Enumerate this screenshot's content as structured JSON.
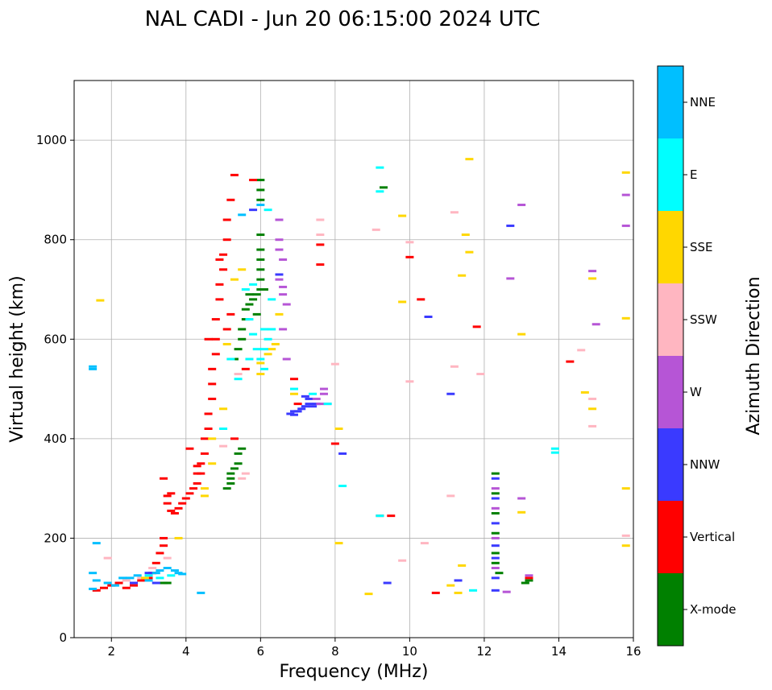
{
  "chart_data": {
    "type": "scatter",
    "title": "NAL CADI - Jun 20 06:15:00 2024 UTC",
    "xlabel": "Frequency (MHz)",
    "ylabel": "Virtual height (km)",
    "xlim": [
      1,
      16
    ],
    "ylim": [
      0,
      1120
    ],
    "grid": true,
    "xticks": [
      2,
      4,
      6,
      8,
      10,
      12,
      14,
      16
    ],
    "yticks": [
      0,
      200,
      400,
      600,
      800,
      1000
    ],
    "colorbar": {
      "label": "Azimuth Direction",
      "categories": [
        {
          "name": "X-mode",
          "color": "#008000"
        },
        {
          "name": "Vertical",
          "color": "#ff0000"
        },
        {
          "name": "NNW",
          "color": "#3a3aff"
        },
        {
          "name": "W",
          "color": "#b655d6"
        },
        {
          "name": "SSW",
          "color": "#ffb6c1"
        },
        {
          "name": "SSE",
          "color": "#ffd700"
        },
        {
          "name": "E",
          "color": "#00ffff"
        },
        {
          "name": "NNE",
          "color": "#00bfff"
        }
      ]
    },
    "series": [
      {
        "name": "X-mode",
        "points": [
          [
            6.0,
            920
          ],
          [
            6.0,
            900
          ],
          [
            6.0,
            880
          ],
          [
            6.0,
            810
          ],
          [
            6.0,
            780
          ],
          [
            6.0,
            760
          ],
          [
            6.0,
            740
          ],
          [
            6.0,
            720
          ],
          [
            6.0,
            700
          ],
          [
            5.9,
            690
          ],
          [
            5.8,
            680
          ],
          [
            5.7,
            670
          ],
          [
            5.6,
            660
          ],
          [
            5.6,
            640
          ],
          [
            5.5,
            620
          ],
          [
            5.5,
            600
          ],
          [
            5.4,
            580
          ],
          [
            5.3,
            560
          ],
          [
            5.5,
            380
          ],
          [
            5.4,
            370
          ],
          [
            5.4,
            350
          ],
          [
            5.3,
            340
          ],
          [
            5.2,
            330
          ],
          [
            5.2,
            320
          ],
          [
            5.2,
            310
          ],
          [
            5.1,
            300
          ],
          [
            9.3,
            905
          ],
          [
            3.4,
            110
          ],
          [
            3.5,
            110
          ],
          [
            12.3,
            330
          ],
          [
            12.3,
            290
          ],
          [
            12.3,
            250
          ],
          [
            12.3,
            210
          ],
          [
            12.3,
            170
          ],
          [
            12.3,
            150
          ],
          [
            12.4,
            130
          ],
          [
            13.1,
            110
          ],
          [
            13.2,
            115
          ],
          [
            5.9,
            650
          ],
          [
            6.1,
            700
          ],
          [
            5.7,
            690
          ]
        ]
      },
      {
        "name": "Vertical",
        "points": [
          [
            1.6,
            95
          ],
          [
            1.8,
            100
          ],
          [
            2.0,
            105
          ],
          [
            2.2,
            110
          ],
          [
            2.4,
            100
          ],
          [
            2.6,
            105
          ],
          [
            2.8,
            115
          ],
          [
            3.0,
            120
          ],
          [
            3.1,
            130
          ],
          [
            3.2,
            150
          ],
          [
            3.3,
            170
          ],
          [
            3.4,
            185
          ],
          [
            3.4,
            200
          ],
          [
            3.5,
            270
          ],
          [
            3.5,
            285
          ],
          [
            3.6,
            255
          ],
          [
            3.7,
            250
          ],
          [
            3.8,
            260
          ],
          [
            3.9,
            270
          ],
          [
            4.0,
            280
          ],
          [
            4.1,
            290
          ],
          [
            4.2,
            300
          ],
          [
            4.3,
            310
          ],
          [
            4.4,
            330
          ],
          [
            4.4,
            350
          ],
          [
            4.5,
            370
          ],
          [
            4.5,
            400
          ],
          [
            4.6,
            420
          ],
          [
            4.6,
            450
          ],
          [
            4.7,
            480
          ],
          [
            4.7,
            510
          ],
          [
            4.7,
            540
          ],
          [
            4.8,
            570
          ],
          [
            4.8,
            600
          ],
          [
            4.8,
            640
          ],
          [
            4.9,
            680
          ],
          [
            4.9,
            710
          ],
          [
            5.0,
            740
          ],
          [
            5.0,
            770
          ],
          [
            5.1,
            800
          ],
          [
            5.1,
            840
          ],
          [
            5.2,
            880
          ],
          [
            5.3,
            930
          ],
          [
            5.8,
            920
          ],
          [
            6.9,
            520
          ],
          [
            7.0,
            470
          ],
          [
            7.6,
            750
          ],
          [
            7.6,
            790
          ],
          [
            8.0,
            390
          ],
          [
            9.2,
            245
          ],
          [
            9.5,
            245
          ],
          [
            10.0,
            765
          ],
          [
            10.3,
            680
          ],
          [
            10.7,
            90
          ],
          [
            11.8,
            625
          ],
          [
            14.3,
            555
          ],
          [
            13.2,
            120
          ],
          [
            4.1,
            380
          ],
          [
            4.3,
            345
          ],
          [
            5.3,
            400
          ],
          [
            5.6,
            540
          ],
          [
            5.1,
            620
          ],
          [
            4.9,
            760
          ],
          [
            4.6,
            600
          ],
          [
            5.2,
            650
          ],
          [
            3.4,
            320
          ],
          [
            3.6,
            290
          ],
          [
            4.3,
            330
          ]
        ]
      },
      {
        "name": "NNW",
        "points": [
          [
            6.8,
            450
          ],
          [
            6.9,
            455
          ],
          [
            7.0,
            455
          ],
          [
            7.1,
            460
          ],
          [
            7.2,
            465
          ],
          [
            7.3,
            470
          ],
          [
            7.4,
            465
          ],
          [
            7.5,
            470
          ],
          [
            7.3,
            480
          ],
          [
            7.2,
            485
          ],
          [
            6.9,
            448
          ],
          [
            8.2,
            370
          ],
          [
            9.4,
            110
          ],
          [
            10.5,
            645
          ],
          [
            11.1,
            490
          ],
          [
            11.3,
            115
          ],
          [
            12.3,
            320
          ],
          [
            12.3,
            280
          ],
          [
            12.3,
            230
          ],
          [
            12.3,
            185
          ],
          [
            12.3,
            160
          ],
          [
            12.3,
            120
          ],
          [
            12.3,
            95
          ],
          [
            12.7,
            828
          ],
          [
            6.5,
            730
          ],
          [
            5.8,
            860
          ],
          [
            3.0,
            130
          ],
          [
            3.2,
            110
          ],
          [
            2.6,
            110
          ]
        ]
      },
      {
        "name": "W",
        "points": [
          [
            6.5,
            840
          ],
          [
            6.5,
            800
          ],
          [
            6.6,
            760
          ],
          [
            6.5,
            720
          ],
          [
            6.6,
            690
          ],
          [
            6.7,
            670
          ],
          [
            6.6,
            620
          ],
          [
            6.7,
            560
          ],
          [
            7.5,
            480
          ],
          [
            7.7,
            490
          ],
          [
            7.8,
            470
          ],
          [
            7.7,
            500
          ],
          [
            7.6,
            470
          ],
          [
            13.0,
            870
          ],
          [
            12.7,
            722
          ],
          [
            14.9,
            737
          ],
          [
            15.0,
            630
          ],
          [
            15.8,
            890
          ],
          [
            15.8,
            828
          ],
          [
            12.6,
            92
          ],
          [
            13.2,
            125
          ],
          [
            12.3,
            300
          ],
          [
            12.3,
            260
          ],
          [
            12.3,
            200
          ],
          [
            12.3,
            140
          ],
          [
            13.0,
            280
          ],
          [
            6.5,
            780
          ],
          [
            6.6,
            705
          ]
        ]
      },
      {
        "name": "SSW",
        "points": [
          [
            7.6,
            840
          ],
          [
            7.6,
            810
          ],
          [
            8.0,
            550
          ],
          [
            9.1,
            820
          ],
          [
            10.0,
            795
          ],
          [
            10.0,
            515
          ],
          [
            9.8,
            155
          ],
          [
            10.4,
            190
          ],
          [
            11.2,
            855
          ],
          [
            11.2,
            545
          ],
          [
            11.1,
            285
          ],
          [
            11.9,
            530
          ],
          [
            14.6,
            578
          ],
          [
            14.9,
            425
          ],
          [
            15.8,
            205
          ],
          [
            5.6,
            330
          ],
          [
            5.5,
            320
          ],
          [
            5.4,
            530
          ],
          [
            2.4,
            115
          ],
          [
            2.8,
            120
          ],
          [
            3.1,
            140
          ],
          [
            3.5,
            160
          ],
          [
            1.9,
            160
          ],
          [
            14.9,
            480
          ],
          [
            5.0,
            385
          ]
        ]
      },
      {
        "name": "SSE",
        "points": [
          [
            1.7,
            678
          ],
          [
            4.7,
            400
          ],
          [
            4.7,
            350
          ],
          [
            4.5,
            285
          ],
          [
            4.5,
            300
          ],
          [
            5.0,
            460
          ],
          [
            5.3,
            720
          ],
          [
            5.5,
            740
          ],
          [
            6.0,
            530
          ],
          [
            6.2,
            570
          ],
          [
            6.3,
            580
          ],
          [
            6.5,
            650
          ],
          [
            6.4,
            590
          ],
          [
            6.9,
            490
          ],
          [
            8.1,
            420
          ],
          [
            8.1,
            190
          ],
          [
            8.9,
            88
          ],
          [
            9.8,
            675
          ],
          [
            9.8,
            848
          ],
          [
            11.1,
            105
          ],
          [
            11.3,
            90
          ],
          [
            11.4,
            145
          ],
          [
            11.4,
            728
          ],
          [
            11.5,
            810
          ],
          [
            11.6,
            775
          ],
          [
            11.6,
            962
          ],
          [
            13.0,
            610
          ],
          [
            13.0,
            252
          ],
          [
            14.7,
            493
          ],
          [
            14.9,
            460
          ],
          [
            14.9,
            722
          ],
          [
            15.8,
            935
          ],
          [
            15.8,
            642
          ],
          [
            15.8,
            300
          ],
          [
            15.8,
            185
          ],
          [
            2.9,
            120
          ],
          [
            3.8,
            200
          ],
          [
            6.0,
            552
          ],
          [
            5.1,
            590
          ]
        ]
      },
      {
        "name": "E",
        "points": [
          [
            5.6,
            700
          ],
          [
            5.7,
            640
          ],
          [
            5.8,
            610
          ],
          [
            5.9,
            580
          ],
          [
            6.0,
            560
          ],
          [
            6.1,
            540
          ],
          [
            6.2,
            600
          ],
          [
            6.3,
            620
          ],
          [
            6.1,
            580
          ],
          [
            5.7,
            560
          ],
          [
            5.4,
            520
          ],
          [
            5.2,
            560
          ],
          [
            6.1,
            620
          ],
          [
            6.2,
            860
          ],
          [
            6.3,
            680
          ],
          [
            6.9,
            500
          ],
          [
            7.4,
            490
          ],
          [
            7.8,
            470
          ],
          [
            8.2,
            305
          ],
          [
            9.2,
            945
          ],
          [
            9.2,
            897
          ],
          [
            9.2,
            245
          ],
          [
            11.7,
            95
          ],
          [
            13.9,
            380
          ],
          [
            13.9,
            372
          ],
          [
            5.0,
            420
          ],
          [
            5.8,
            710
          ],
          [
            3.3,
            120
          ],
          [
            3.6,
            125
          ],
          [
            3.0,
            125
          ]
        ]
      },
      {
        "name": "NNE",
        "points": [
          [
            1.5,
            545
          ],
          [
            1.5,
            540
          ],
          [
            1.5,
            130
          ],
          [
            1.6,
            115
          ],
          [
            1.9,
            110
          ],
          [
            2.1,
            105
          ],
          [
            2.5,
            120
          ],
          [
            2.7,
            125
          ],
          [
            3.0,
            115
          ],
          [
            3.2,
            130
          ],
          [
            3.3,
            135
          ],
          [
            3.5,
            140
          ],
          [
            3.7,
            135
          ],
          [
            3.8,
            130
          ],
          [
            3.9,
            128
          ],
          [
            4.4,
            90
          ],
          [
            1.6,
            190
          ],
          [
            5.5,
            850
          ],
          [
            6.0,
            870
          ],
          [
            1.5,
            98
          ],
          [
            2.3,
            120
          ]
        ]
      }
    ]
  }
}
